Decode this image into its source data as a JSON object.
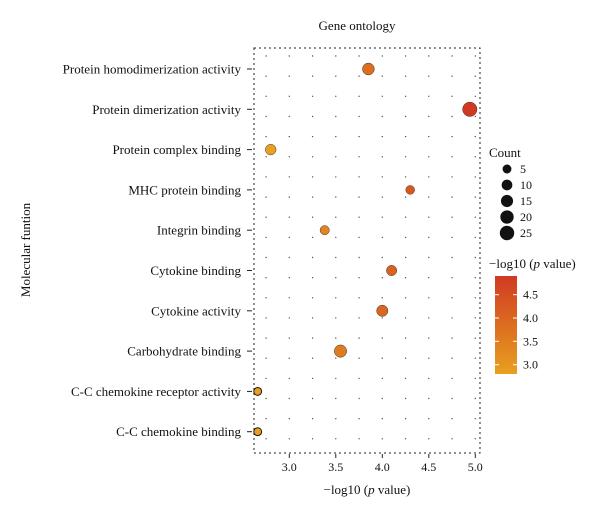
{
  "chart_data": {
    "type": "scatter",
    "title": "Gene ontology",
    "xlabel": "−log10 (p value)",
    "xlabel_parts": {
      "prefix": "−log10 (",
      "italic": "p",
      "suffix": " value)"
    },
    "ylabel": "Molecular funtion",
    "xlim": [
      2.62,
      5.05
    ],
    "xticks": [
      "3.0",
      "3.5",
      "4.0",
      "4.5",
      "5.0"
    ],
    "categories": [
      "Protein homodimerization activity",
      "Protein dimerization activity",
      "Protein complex binding",
      "MHC protein binding",
      "Integrin binding",
      "Cytokine binding",
      "Cytokine activity",
      "Carbohydrate binding",
      "C-C chemokine receptor activity",
      "C-C chemokine binding"
    ],
    "points": [
      {
        "category": "Protein homodimerization activity",
        "x": 3.85,
        "count": 14,
        "neglog10p": 3.85
      },
      {
        "category": "Protein dimerization activity",
        "x": 4.94,
        "count": 25,
        "neglog10p": 4.94
      },
      {
        "category": "Protein complex binding",
        "x": 2.8,
        "count": 10,
        "neglog10p": 2.8
      },
      {
        "category": "MHC protein binding",
        "x": 4.3,
        "count": 5,
        "neglog10p": 4.3
      },
      {
        "category": "Integrin binding",
        "x": 3.38,
        "count": 6,
        "neglog10p": 3.38
      },
      {
        "category": "Cytokine binding",
        "x": 4.1,
        "count": 9,
        "neglog10p": 4.1
      },
      {
        "category": "Cytokine activity",
        "x": 4.0,
        "count": 12,
        "neglog10p": 4.0
      },
      {
        "category": "Carbohydrate binding",
        "x": 3.55,
        "count": 16,
        "neglog10p": 3.55
      },
      {
        "category": "C-C chemokine receptor activity",
        "x": 2.66,
        "count": 3,
        "neglog10p": 2.66
      },
      {
        "category": "C-C chemokine binding",
        "x": 2.66,
        "count": 3,
        "neglog10p": 2.66
      }
    ],
    "size_legend": {
      "title": "Count",
      "values": [
        5,
        10,
        15,
        20,
        25
      ]
    },
    "color_legend": {
      "title": "−log10 (p value)",
      "title_parts": {
        "prefix": "−log10 (",
        "italic": "p",
        "suffix": " value)"
      },
      "ticks": [
        "4.5",
        "4.0",
        "3.5",
        "3.0"
      ],
      "range": [
        2.8,
        4.9
      ],
      "color_low": "#e8a020",
      "color_high": "#d03a22"
    },
    "grid": "dotted",
    "legend_position": "right"
  }
}
